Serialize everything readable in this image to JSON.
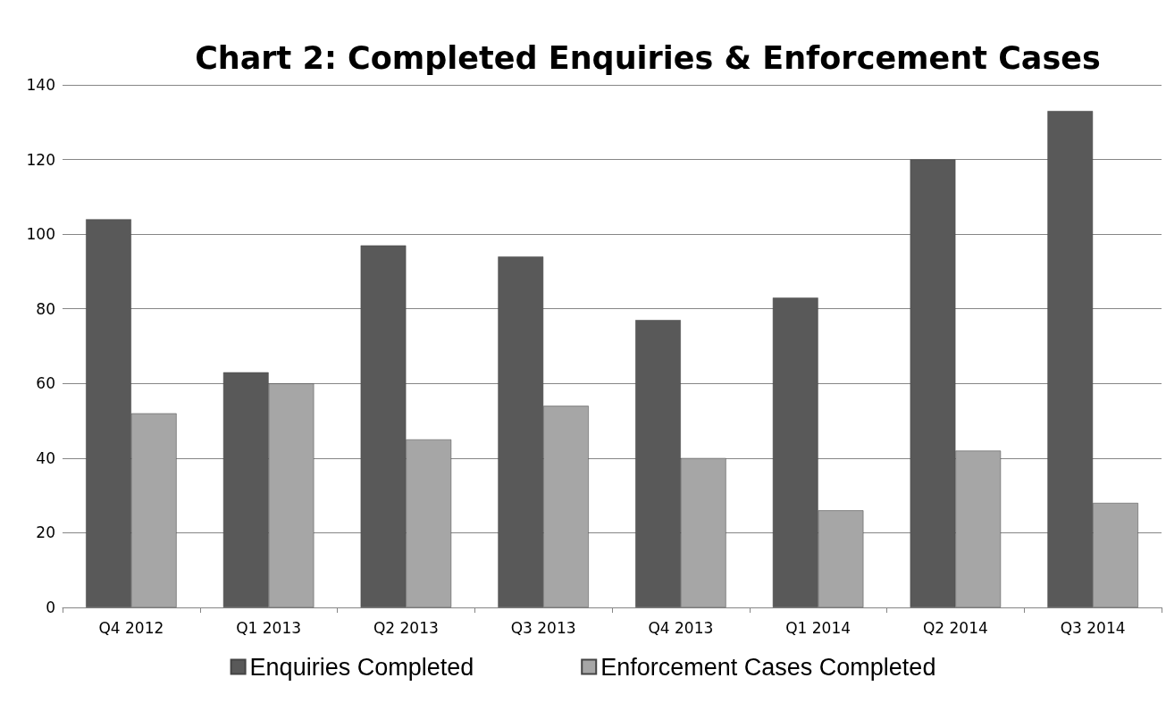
{
  "chart_data": {
    "type": "bar",
    "title": "Chart 2: Completed Enquiries & Enforcement Cases",
    "categories": [
      "Q4 2012",
      "Q1 2013",
      "Q2 2013",
      "Q3 2013",
      "Q4 2013",
      "Q1 2014",
      "Q2 2014",
      "Q3 2014"
    ],
    "series": [
      {
        "name": "Enquiries Completed",
        "color": "#595959",
        "values": [
          104,
          63,
          97,
          94,
          77,
          83,
          120,
          133
        ]
      },
      {
        "name": "Enforcement Cases Completed",
        "color": "#a6a6a6",
        "values": [
          52,
          60,
          45,
          54,
          40,
          26,
          42,
          28
        ]
      }
    ],
    "ylim": [
      0,
      140
    ],
    "yticks": [
      0,
      20,
      40,
      60,
      80,
      100,
      120,
      140
    ],
    "grid": "y",
    "legend": "bottom"
  }
}
